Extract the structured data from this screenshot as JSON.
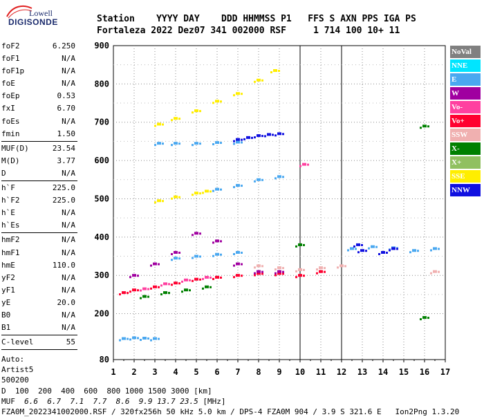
{
  "logo": {
    "line1": "Lowell",
    "line2": "DIGISONDE"
  },
  "header": {
    "labels": "Station    YYYY DAY    DDD HHMMSS P1   FFS S AXN PPS IGA PS",
    "values": "Fortaleza 2022 Dez07 341 002000 RSF     1 714 100 10+ 11"
  },
  "params_group1": [
    {
      "label": "foF2",
      "value": "6.250"
    },
    {
      "label": "foF1",
      "value": "N/A"
    },
    {
      "label": "foF1p",
      "value": "N/A"
    },
    {
      "label": "foE",
      "value": "N/A"
    },
    {
      "label": "foEp",
      "value": "0.53"
    },
    {
      "label": "fxI",
      "value": "6.70"
    },
    {
      "label": "foEs",
      "value": "N/A"
    },
    {
      "label": "fmin",
      "value": "1.50"
    }
  ],
  "params_group2": [
    {
      "label": "MUF(D)",
      "value": "23.54"
    },
    {
      "label": "M(D)",
      "value": "3.77"
    },
    {
      "label": "D",
      "value": "N/A"
    }
  ],
  "params_group3": [
    {
      "label": "h`F",
      "value": "225.0"
    },
    {
      "label": "h`F2",
      "value": "225.0"
    },
    {
      "label": "h`E",
      "value": "N/A"
    },
    {
      "label": "h`Es",
      "value": "N/A"
    }
  ],
  "params_group4": [
    {
      "label": "hmF2",
      "value": "N/A"
    },
    {
      "label": "hmF1",
      "value": "N/A"
    },
    {
      "label": "hmE",
      "value": "110.0"
    },
    {
      "label": "yF2",
      "value": "N/A"
    },
    {
      "label": "yF1",
      "value": "N/A"
    },
    {
      "label": "yE",
      "value": "20.0"
    },
    {
      "label": "B0",
      "value": "N/A"
    },
    {
      "label": "B1",
      "value": "N/A"
    }
  ],
  "params_group5": [
    {
      "label": "C-level",
      "value": "55"
    }
  ],
  "autoscaling": {
    "line1": "Auto:",
    "line2": "Artist5",
    "line3": "500200"
  },
  "legend": [
    {
      "label": "NoVal",
      "color": "#808080"
    },
    {
      "label": "NNE",
      "color": "#00e5ff"
    },
    {
      "label": "E",
      "color": "#4aa8f0"
    },
    {
      "label": "W",
      "color": "#a000a0"
    },
    {
      "label": "Vo-",
      "color": "#ff40a0"
    },
    {
      "label": "Vo+",
      "color": "#ff0030"
    },
    {
      "label": "SSW",
      "color": "#f0b0b0"
    },
    {
      "label": "X-",
      "color": "#008000"
    },
    {
      "label": "X+",
      "color": "#90c060"
    },
    {
      "label": "SSE",
      "color": "#ffee00"
    },
    {
      "label": "NNW",
      "color": "#1010e0"
    }
  ],
  "chart_data": {
    "type": "scatter",
    "xlabel": "",
    "ylabel": "",
    "xlim": [
      1,
      17
    ],
    "ylim": [
      80,
      900
    ],
    "x_ticks": [
      "1",
      "2",
      "3",
      "4",
      "5",
      "6",
      "7",
      "8",
      "9",
      "10",
      "11",
      "12",
      "13",
      "14",
      "15",
      "16",
      "17"
    ],
    "y_ticks": [
      "80",
      "200",
      "300",
      "400",
      "500",
      "600",
      "700",
      "800",
      "900"
    ],
    "series": [
      {
        "name": "E",
        "color": "#4aa8f0",
        "points": [
          [
            1.5,
            135
          ],
          [
            2.0,
            137
          ],
          [
            2.5,
            136
          ],
          [
            3.0,
            135
          ],
          [
            3.2,
            645
          ],
          [
            4.0,
            645
          ],
          [
            5.0,
            645
          ],
          [
            6.0,
            647
          ],
          [
            7.0,
            648
          ],
          [
            6.0,
            525
          ],
          [
            7.0,
            535
          ],
          [
            8.0,
            550
          ],
          [
            9.0,
            558
          ],
          [
            4.0,
            345
          ],
          [
            5.0,
            350
          ],
          [
            6.0,
            355
          ],
          [
            7.0,
            360
          ],
          [
            12.5,
            370
          ],
          [
            13.5,
            375
          ],
          [
            14.5,
            372
          ],
          [
            15.5,
            365
          ],
          [
            16.5,
            370
          ]
        ]
      },
      {
        "name": "SSE",
        "color": "#ffee00",
        "points": [
          [
            3.2,
            695
          ],
          [
            4.0,
            710
          ],
          [
            5.0,
            730
          ],
          [
            6.0,
            755
          ],
          [
            7.0,
            775
          ],
          [
            8.0,
            810
          ],
          [
            8.8,
            835
          ],
          [
            3.2,
            495
          ],
          [
            4.0,
            505
          ],
          [
            5.0,
            515
          ],
          [
            5.5,
            520
          ]
        ]
      },
      {
        "name": "NNW",
        "color": "#1010e0",
        "points": [
          [
            7.0,
            655
          ],
          [
            7.5,
            660
          ],
          [
            8.0,
            665
          ],
          [
            8.5,
            668
          ],
          [
            9.0,
            670
          ],
          [
            13.0,
            365
          ],
          [
            14.0,
            360
          ],
          [
            14.5,
            370
          ],
          [
            12.8,
            380
          ]
        ]
      },
      {
        "name": "Vo+",
        "color": "#ff0030",
        "points": [
          [
            1.5,
            255
          ],
          [
            2.0,
            262
          ],
          [
            3.0,
            270
          ],
          [
            4.0,
            280
          ],
          [
            5.0,
            290
          ],
          [
            6.0,
            295
          ],
          [
            7.0,
            300
          ],
          [
            8.0,
            305
          ],
          [
            9.0,
            305
          ],
          [
            10.0,
            300
          ],
          [
            11.0,
            310
          ]
        ]
      },
      {
        "name": "W",
        "color": "#a000a0",
        "points": [
          [
            2.0,
            300
          ],
          [
            3.0,
            330
          ],
          [
            4.0,
            360
          ],
          [
            5.0,
            410
          ],
          [
            6.0,
            390
          ],
          [
            7.0,
            330
          ],
          [
            8.0,
            310
          ],
          [
            9.0,
            310
          ]
        ]
      },
      {
        "name": "SSW",
        "color": "#f0b0b0",
        "points": [
          [
            8.0,
            325
          ],
          [
            9.0,
            320
          ],
          [
            10.0,
            315
          ],
          [
            11.0,
            320
          ],
          [
            12.0,
            325
          ],
          [
            16.5,
            310
          ]
        ]
      },
      {
        "name": "X-",
        "color": "#008000",
        "points": [
          [
            2.5,
            245
          ],
          [
            3.5,
            255
          ],
          [
            4.5,
            262
          ],
          [
            5.5,
            270
          ],
          [
            10.0,
            380
          ],
          [
            16.0,
            190
          ],
          [
            16.0,
            690
          ]
        ]
      },
      {
        "name": "Vo-",
        "color": "#ff40a0",
        "points": [
          [
            2.5,
            265
          ],
          [
            3.5,
            278
          ],
          [
            4.5,
            288
          ],
          [
            5.5,
            295
          ],
          [
            10.2,
            590
          ]
        ]
      }
    ]
  },
  "footer": {
    "d_label": "D",
    "d_values": "  100  200  400  600  800 1000 1500 3000 [km]",
    "muf_label": "MUF",
    "muf_values": "6.6  6.7  7.1  7.7  8.6  9.9 13.7 23.5",
    "muf_unit": " [MHz]",
    "file_line": "FZA0M_2022341002000.RSF / 320fx256h 50 kHz 5.0 km / DPS-4 FZA0M 904 / 3.9 S 321.6 E   Ion2Png 1.3.20"
  }
}
